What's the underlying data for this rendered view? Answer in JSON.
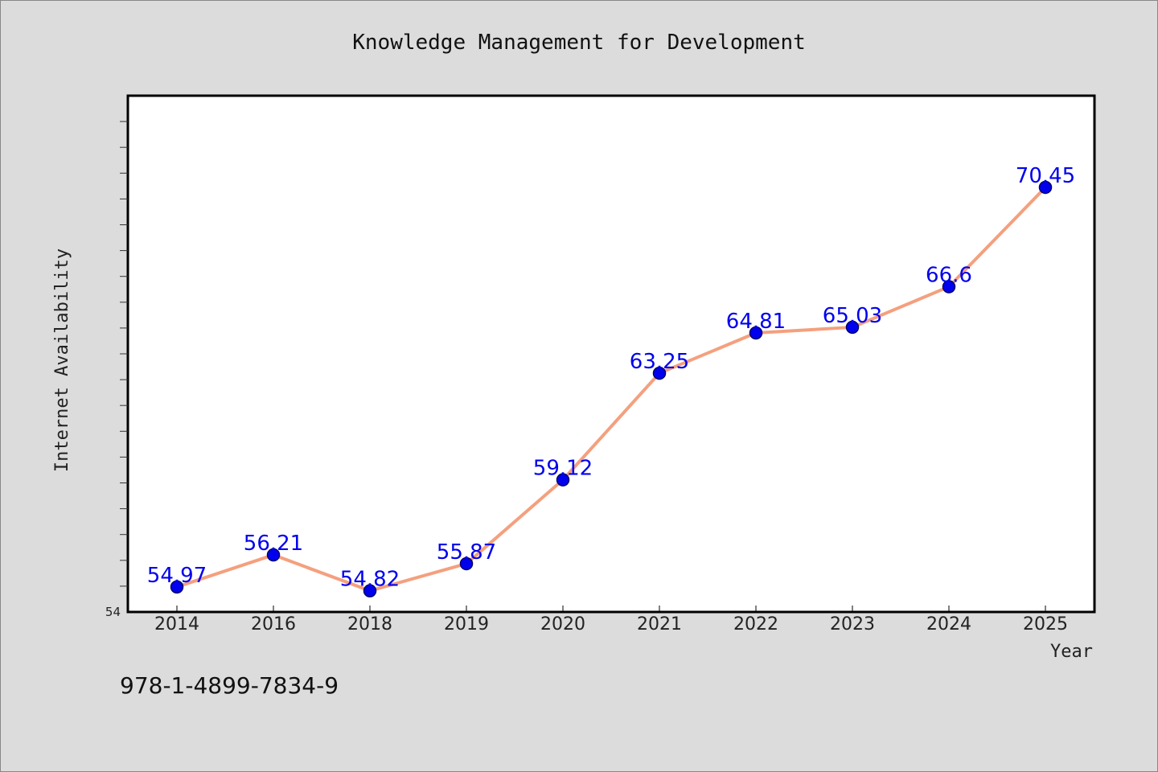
{
  "chart_data": {
    "type": "line",
    "title": "Knowledge Management for Development",
    "xlabel": "Year",
    "ylabel": "Internet Availability",
    "categories": [
      "2014",
      "2016",
      "2018",
      "2019",
      "2020",
      "2021",
      "2022",
      "2023",
      "2024",
      "2025"
    ],
    "series": [
      {
        "values": [
          54.97,
          56.21,
          54.82,
          55.87,
          59.12,
          63.25,
          64.81,
          65.03,
          66.6,
          70.45
        ],
        "labels": [
          "54.97",
          "56.21",
          "54.82",
          "55.87",
          "59.12",
          "63.25",
          "64.81",
          "65.03",
          "66.6",
          "70.45"
        ]
      }
    ],
    "ylim": [
      54,
      74
    ],
    "y_tick_labels": [
      "54"
    ],
    "grid": false,
    "legend": "none",
    "colors": {
      "line": "#f4a07e",
      "marker_fill": "#0000ee",
      "marker_edge": "#00006b",
      "data_label": "#0000ee",
      "background": "#dcdcdc",
      "plot_background": "#ffffff"
    }
  },
  "footer": {
    "isbn": "978-1-4899-7834-9"
  }
}
